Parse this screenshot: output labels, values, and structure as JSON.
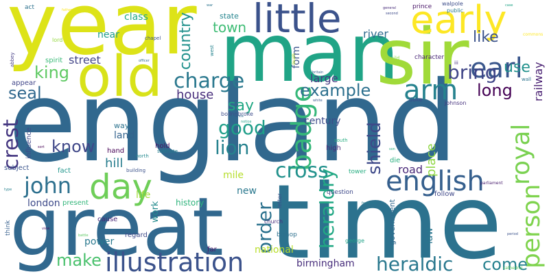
{
  "words": [
    {
      "text": "england",
      "color": "#31688e"
    },
    {
      "text": "time",
      "color": "#2c728e"
    },
    {
      "text": "great",
      "color": "#31688e"
    },
    {
      "text": "year",
      "color": "#dde318"
    },
    {
      "text": "man",
      "color": "#20a486"
    },
    {
      "text": "sir",
      "color": "#a0da39"
    },
    {
      "text": "old",
      "color": "#d8e219"
    },
    {
      "text": "little",
      "color": "#3b528b"
    },
    {
      "text": "early",
      "color": "#fde725"
    },
    {
      "text": "day",
      "color": "#6ece58"
    },
    {
      "text": "earl",
      "color": "#39568c"
    },
    {
      "text": "arm",
      "color": "#26828e"
    },
    {
      "text": "badge",
      "color": "#35b779"
    },
    {
      "text": "royal",
      "color": "#7ad151"
    },
    {
      "text": "person",
      "color": "#7fd34e"
    },
    {
      "text": "illustration",
      "color": "#3b528b"
    },
    {
      "text": "english",
      "color": "#355f8d"
    },
    {
      "text": "john",
      "color": "#2d708e"
    },
    {
      "text": "cross",
      "color": "#21918c"
    },
    {
      "text": "charge",
      "color": "#2a788e"
    },
    {
      "text": "crest",
      "color": "#453781"
    },
    {
      "text": "order",
      "color": "#2c728e"
    },
    {
      "text": "heraldic",
      "color": "#2a788e"
    },
    {
      "text": "heraldry",
      "color": "#22a884"
    },
    {
      "text": "shield",
      "color": "#3e4989"
    },
    {
      "text": "lion",
      "color": "#26828e"
    },
    {
      "text": "good",
      "color": "#1f9e89"
    },
    {
      "text": "bring",
      "color": "#404688"
    },
    {
      "text": "make",
      "color": "#4ac16d"
    },
    {
      "text": "come",
      "color": "#26818e"
    },
    {
      "text": "example",
      "color": "#2d708e"
    },
    {
      "text": "king",
      "color": "#5ec962"
    },
    {
      "text": "seal",
      "color": "#31688e"
    },
    {
      "text": "know",
      "color": "#3f4788"
    },
    {
      "text": "long",
      "color": "#440154"
    },
    {
      "text": "use",
      "color": "#21918c"
    },
    {
      "text": "like",
      "color": "#3b528b"
    },
    {
      "text": "country",
      "color": "#21918c"
    },
    {
      "text": "say",
      "color": "#22a884"
    },
    {
      "text": "town",
      "color": "#3dbc74"
    },
    {
      "text": "street",
      "color": "#414487"
    },
    {
      "text": "house",
      "color": "#472d7b"
    },
    {
      "text": "hill",
      "color": "#287d8e"
    },
    {
      "text": "land",
      "color": "#33638d"
    },
    {
      "text": "century",
      "color": "#3e4c8a"
    },
    {
      "text": "mile",
      "color": "#b5de2b"
    },
    {
      "text": "road",
      "color": "#482878"
    },
    {
      "text": "place",
      "color": "#8fd744"
    },
    {
      "text": "large",
      "color": "#443a83"
    },
    {
      "text": "railway",
      "color": "#481f71"
    },
    {
      "text": "river",
      "color": "#2f6b8e"
    },
    {
      "text": "form",
      "color": "#3b528b"
    },
    {
      "text": "near",
      "color": "#1e9c89"
    },
    {
      "text": "class",
      "color": "#22a884"
    },
    {
      "text": "london",
      "color": "#3e4a89"
    },
    {
      "text": "life",
      "color": "#a2da37"
    },
    {
      "text": "history",
      "color": "#2eb37c"
    },
    {
      "text": "birmingham",
      "color": "#472d7b"
    },
    {
      "text": "national",
      "color": "#b8de29"
    },
    {
      "text": "power",
      "color": "#29788e"
    },
    {
      "text": "new",
      "color": "#2a788e"
    },
    {
      "text": "government",
      "color": "#31688e"
    },
    {
      "text": "law",
      "color": "#2a768e"
    },
    {
      "text": "work",
      "color": "#238a8d"
    },
    {
      "text": "state",
      "color": "#25848e"
    },
    {
      "text": "spirit",
      "color": "#38b977"
    },
    {
      "text": "appear",
      "color": "#404588"
    },
    {
      "text": "bolingbroke",
      "color": "#3e4c8a"
    },
    {
      "text": "influence",
      "color": "#3f4889"
    },
    {
      "text": "way",
      "color": "#2c738e"
    },
    {
      "text": "hold",
      "color": "#471365"
    },
    {
      "text": "hand",
      "color": "#440154"
    },
    {
      "text": "subject",
      "color": "#3a548c"
    },
    {
      "text": "fact",
      "color": "#1f958b"
    },
    {
      "text": "present",
      "color": "#32b67a"
    },
    {
      "text": "cause",
      "color": "#482677"
    },
    {
      "text": "regard",
      "color": "#3e4a89"
    },
    {
      "text": "think",
      "color": "#355f8d"
    },
    {
      "text": "far",
      "color": "#481769"
    },
    {
      "text": "bishop",
      "color": "#2d708e"
    },
    {
      "text": "church",
      "color": "#472d7b"
    },
    {
      "text": "letter",
      "color": "#3b528b"
    },
    {
      "text": "question",
      "color": "#3e4989"
    },
    {
      "text": "follow",
      "color": "#3f4788"
    },
    {
      "text": "high",
      "color": "#482878"
    },
    {
      "text": "die",
      "color": "#29af7f"
    },
    {
      "text": "tower",
      "color": "#27ad81"
    },
    {
      "text": "south",
      "color": "#26ad81"
    },
    {
      "text": "north",
      "color": "#23898e"
    },
    {
      "text": "building",
      "color": "#3b528b"
    },
    {
      "text": "sidenote",
      "color": "#277f8e"
    },
    {
      "text": "george",
      "color": "#1fa287"
    },
    {
      "text": "duke",
      "color": "#3e4989"
    },
    {
      "text": "johnson",
      "color": "#46327e"
    },
    {
      "text": "character",
      "color": "#482576"
    },
    {
      "text": "prince",
      "color": "#481467"
    },
    {
      "text": "walpole",
      "color": "#3d4d8a"
    },
    {
      "text": "public",
      "color": "#2a788e"
    },
    {
      "text": "act",
      "color": "#2d718e"
    },
    {
      "text": "lord",
      "color": "#95d840"
    },
    {
      "text": "chapel",
      "color": "#3b528b"
    },
    {
      "text": "abbey",
      "color": "#443b84"
    },
    {
      "text": "west",
      "color": "#25838e"
    },
    {
      "text": "build",
      "color": "#8bd646"
    },
    {
      "text": "iii",
      "color": "#46337e"
    },
    {
      "text": "wall",
      "color": "#2c738e"
    },
    {
      "text": "commons",
      "color": "#fde725"
    },
    {
      "text": "death",
      "color": "#bddf26"
    },
    {
      "text": "cathedral",
      "color": "#5ec962"
    },
    {
      "text": "britain",
      "color": "#33638d"
    },
    {
      "text": "parliament",
      "color": "#481c6e"
    },
    {
      "text": "general",
      "color": "#472c7a"
    },
    {
      "text": "second",
      "color": "#3e4a89"
    },
    {
      "text": "officer",
      "color": "#2f6c8e"
    },
    {
      "text": "notice",
      "color": "#1fa187"
    },
    {
      "text": "service",
      "color": "#31688e"
    },
    {
      "text": "footnote",
      "color": "#29798e"
    },
    {
      "text": "white",
      "color": "#38588c"
    },
    {
      "text": "type",
      "color": "#26818e"
    },
    {
      "text": "son",
      "color": "#2ab07f"
    },
    {
      "text": "view",
      "color": "#48186a"
    },
    {
      "text": "father",
      "color": "#fde725"
    },
    {
      "text": "sort",
      "color": "#440154"
    },
    {
      "text": "battle",
      "color": "#5dc963"
    },
    {
      "text": "war",
      "color": "#2c738e"
    },
    {
      "text": "case",
      "color": "#20a486"
    },
    {
      "text": "period",
      "color": "#3b528b"
    }
  ]
}
